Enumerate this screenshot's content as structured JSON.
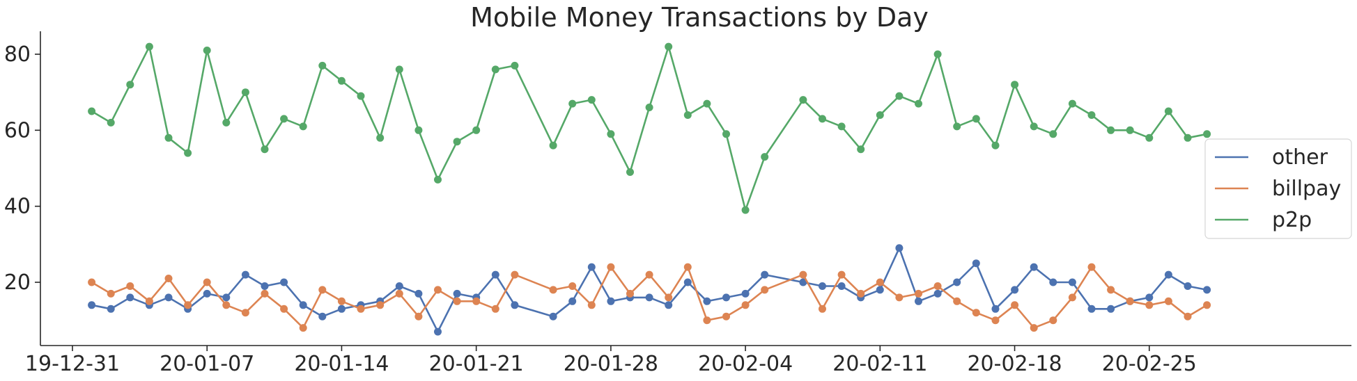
{
  "chart_data": {
    "type": "line",
    "title": "Mobile Money Transactions by Day",
    "xlabel": "",
    "ylabel": "",
    "x_tick_labels": [
      "19-12-31",
      "20-01-07",
      "20-01-14",
      "20-01-21",
      "20-01-28",
      "20-02-04",
      "20-02-11",
      "20-02-18",
      "20-02-25"
    ],
    "y_ticks": [
      20,
      40,
      60,
      80
    ],
    "ylim": [
      0,
      86
    ],
    "xlim": [
      "2019-12-31",
      "2020-03-03"
    ],
    "legend_position": "right",
    "grid": false,
    "markers": true,
    "series": [
      {
        "name": "other",
        "color": "#4c72b0",
        "points": [
          [
            "2020-01-01",
            14
          ],
          [
            "2020-01-02",
            13
          ],
          [
            "2020-01-03",
            16
          ],
          [
            "2020-01-04",
            14
          ],
          [
            "2020-01-05",
            16
          ],
          [
            "2020-01-06",
            13
          ],
          [
            "2020-01-07",
            17
          ],
          [
            "2020-01-08",
            16
          ],
          [
            "2020-01-09",
            22
          ],
          [
            "2020-01-10",
            19
          ],
          [
            "2020-01-11",
            20
          ],
          [
            "2020-01-12",
            14
          ],
          [
            "2020-01-13",
            11
          ],
          [
            "2020-01-14",
            13
          ],
          [
            "2020-01-15",
            14
          ],
          [
            "2020-01-16",
            15
          ],
          [
            "2020-01-17",
            19
          ],
          [
            "2020-01-18",
            17
          ],
          [
            "2020-01-19",
            7
          ],
          [
            "2020-01-20",
            17
          ],
          [
            "2020-01-21",
            16
          ],
          [
            "2020-01-22",
            22
          ],
          [
            "2020-01-23",
            14
          ],
          [
            "2020-01-25",
            11
          ],
          [
            "2020-01-26",
            15
          ],
          [
            "2020-01-27",
            24
          ],
          [
            "2020-01-28",
            15
          ],
          [
            "2020-01-29",
            16
          ],
          [
            "2020-01-30",
            16
          ],
          [
            "2020-01-31",
            14
          ],
          [
            "2020-02-01",
            20
          ],
          [
            "2020-02-02",
            15
          ],
          [
            "2020-02-03",
            16
          ],
          [
            "2020-02-04",
            17
          ],
          [
            "2020-02-05",
            22
          ],
          [
            "2020-02-07",
            20
          ],
          [
            "2020-02-08",
            19
          ],
          [
            "2020-02-09",
            19
          ],
          [
            "2020-02-10",
            16
          ],
          [
            "2020-02-11",
            18
          ],
          [
            "2020-02-12",
            29
          ],
          [
            "2020-02-13",
            15
          ],
          [
            "2020-02-14",
            17
          ],
          [
            "2020-02-15",
            20
          ],
          [
            "2020-02-16",
            25
          ],
          [
            "2020-02-17",
            13
          ],
          [
            "2020-02-18",
            18
          ],
          [
            "2020-02-19",
            24
          ],
          [
            "2020-02-20",
            20
          ],
          [
            "2020-02-21",
            20
          ],
          [
            "2020-02-22",
            13
          ],
          [
            "2020-02-23",
            13
          ],
          [
            "2020-02-24",
            15
          ],
          [
            "2020-02-25",
            16
          ],
          [
            "2020-02-26",
            22
          ],
          [
            "2020-02-27",
            19
          ],
          [
            "2020-02-28",
            18
          ]
        ]
      },
      {
        "name": "billpay",
        "color": "#dd8452",
        "points": [
          [
            "2020-01-01",
            20
          ],
          [
            "2020-01-02",
            17
          ],
          [
            "2020-01-03",
            19
          ],
          [
            "2020-01-04",
            15
          ],
          [
            "2020-01-05",
            21
          ],
          [
            "2020-01-06",
            14
          ],
          [
            "2020-01-07",
            20
          ],
          [
            "2020-01-08",
            14
          ],
          [
            "2020-01-09",
            12
          ],
          [
            "2020-01-10",
            17
          ],
          [
            "2020-01-11",
            13
          ],
          [
            "2020-01-12",
            8
          ],
          [
            "2020-01-13",
            18
          ],
          [
            "2020-01-14",
            15
          ],
          [
            "2020-01-15",
            13
          ],
          [
            "2020-01-16",
            14
          ],
          [
            "2020-01-17",
            17
          ],
          [
            "2020-01-18",
            11
          ],
          [
            "2020-01-19",
            18
          ],
          [
            "2020-01-20",
            15
          ],
          [
            "2020-01-21",
            15
          ],
          [
            "2020-01-22",
            13
          ],
          [
            "2020-01-23",
            22
          ],
          [
            "2020-01-25",
            18
          ],
          [
            "2020-01-26",
            19
          ],
          [
            "2020-01-27",
            14
          ],
          [
            "2020-01-28",
            24
          ],
          [
            "2020-01-29",
            17
          ],
          [
            "2020-01-30",
            22
          ],
          [
            "2020-01-31",
            16
          ],
          [
            "2020-02-01",
            24
          ],
          [
            "2020-02-02",
            10
          ],
          [
            "2020-02-03",
            11
          ],
          [
            "2020-02-04",
            14
          ],
          [
            "2020-02-05",
            18
          ],
          [
            "2020-02-07",
            22
          ],
          [
            "2020-02-08",
            13
          ],
          [
            "2020-02-09",
            22
          ],
          [
            "2020-02-10",
            17
          ],
          [
            "2020-02-11",
            20
          ],
          [
            "2020-02-12",
            16
          ],
          [
            "2020-02-13",
            17
          ],
          [
            "2020-02-14",
            19
          ],
          [
            "2020-02-15",
            15
          ],
          [
            "2020-02-16",
            12
          ],
          [
            "2020-02-17",
            10
          ],
          [
            "2020-02-18",
            14
          ],
          [
            "2020-02-19",
            8
          ],
          [
            "2020-02-20",
            10
          ],
          [
            "2020-02-21",
            16
          ],
          [
            "2020-02-22",
            24
          ],
          [
            "2020-02-23",
            18
          ],
          [
            "2020-02-24",
            15
          ],
          [
            "2020-02-25",
            14
          ],
          [
            "2020-02-26",
            15
          ],
          [
            "2020-02-27",
            11
          ],
          [
            "2020-02-28",
            14
          ]
        ]
      },
      {
        "name": "p2p",
        "color": "#55a868",
        "points": [
          [
            "2020-01-01",
            65
          ],
          [
            "2020-01-02",
            62
          ],
          [
            "2020-01-03",
            72
          ],
          [
            "2020-01-04",
            82
          ],
          [
            "2020-01-05",
            58
          ],
          [
            "2020-01-06",
            54
          ],
          [
            "2020-01-07",
            81
          ],
          [
            "2020-01-08",
            62
          ],
          [
            "2020-01-09",
            70
          ],
          [
            "2020-01-10",
            55
          ],
          [
            "2020-01-11",
            63
          ],
          [
            "2020-01-12",
            61
          ],
          [
            "2020-01-13",
            77
          ],
          [
            "2020-01-14",
            73
          ],
          [
            "2020-01-15",
            69
          ],
          [
            "2020-01-16",
            58
          ],
          [
            "2020-01-17",
            76
          ],
          [
            "2020-01-18",
            60
          ],
          [
            "2020-01-19",
            47
          ],
          [
            "2020-01-20",
            57
          ],
          [
            "2020-01-21",
            60
          ],
          [
            "2020-01-22",
            76
          ],
          [
            "2020-01-23",
            77
          ],
          [
            "2020-01-25",
            56
          ],
          [
            "2020-01-26",
            67
          ],
          [
            "2020-01-27",
            68
          ],
          [
            "2020-01-28",
            59
          ],
          [
            "2020-01-29",
            49
          ],
          [
            "2020-01-30",
            66
          ],
          [
            "2020-01-31",
            82
          ],
          [
            "2020-02-01",
            64
          ],
          [
            "2020-02-02",
            67
          ],
          [
            "2020-02-03",
            59
          ],
          [
            "2020-02-04",
            39
          ],
          [
            "2020-02-05",
            53
          ],
          [
            "2020-02-07",
            68
          ],
          [
            "2020-02-08",
            63
          ],
          [
            "2020-02-09",
            61
          ],
          [
            "2020-02-10",
            55
          ],
          [
            "2020-02-11",
            64
          ],
          [
            "2020-02-12",
            69
          ],
          [
            "2020-02-13",
            67
          ],
          [
            "2020-02-14",
            80
          ],
          [
            "2020-02-15",
            61
          ],
          [
            "2020-02-16",
            63
          ],
          [
            "2020-02-17",
            56
          ],
          [
            "2020-02-18",
            72
          ],
          [
            "2020-02-19",
            61
          ],
          [
            "2020-02-20",
            59
          ],
          [
            "2020-02-21",
            67
          ],
          [
            "2020-02-22",
            64
          ],
          [
            "2020-02-23",
            60
          ],
          [
            "2020-02-24",
            60
          ],
          [
            "2020-02-25",
            58
          ],
          [
            "2020-02-26",
            65
          ],
          [
            "2020-02-27",
            58
          ],
          [
            "2020-02-28",
            59
          ]
        ]
      }
    ]
  }
}
